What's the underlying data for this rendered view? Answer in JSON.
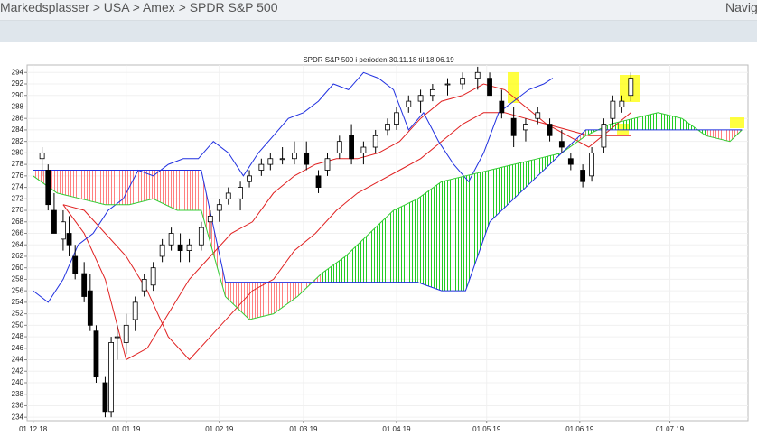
{
  "breadcrumb": "Markedsplasser > USA > Amex > SPDR S&P 500",
  "navigation": "Navig",
  "chart_data": {
    "type": "candlestick",
    "title": "SPDR S&P 500 i perioden 30.11.18 til 18.06.19",
    "xlim": [
      -2,
      238
    ],
    "ylim": [
      233.4,
      295.3
    ],
    "xticks": [
      {
        "value": 0,
        "label": "01.12.18"
      },
      {
        "value": 31,
        "label": "01.01.19"
      },
      {
        "value": 62,
        "label": "01.02.19"
      },
      {
        "value": 90,
        "label": "01.03.19"
      },
      {
        "value": 121,
        "label": "01.04.19"
      },
      {
        "value": 151,
        "label": "01.05.19"
      },
      {
        "value": 182,
        "label": "01.06.19"
      },
      {
        "value": 212,
        "label": "01.07.19"
      }
    ],
    "yticks": [
      234,
      236,
      238,
      240,
      242,
      244,
      246,
      248,
      250,
      252,
      254,
      256,
      258,
      260,
      262,
      264,
      266,
      268,
      270,
      272,
      274,
      276,
      278,
      280,
      282,
      284,
      286,
      288,
      290,
      292,
      294
    ],
    "grid": true,
    "candles": {
      "up_color": "#ffffff",
      "down_color": "#000000",
      "x": [
        3,
        5,
        7,
        10,
        12,
        14,
        17,
        19,
        21,
        24,
        26,
        28,
        31,
        34,
        37,
        40,
        43,
        46,
        49,
        52,
        56,
        59,
        62,
        65,
        69,
        72,
        76,
        79,
        83,
        87,
        91,
        95,
        98,
        102,
        106,
        110,
        114,
        118,
        121,
        125,
        129,
        133,
        138,
        143,
        148,
        152,
        156,
        160,
        164,
        168,
        172,
        176,
        179,
        183,
        186,
        190,
        193,
        196,
        199
      ],
      "open": [
        279,
        277,
        270,
        265,
        266,
        262,
        259,
        256,
        249,
        240,
        235,
        248,
        247,
        251,
        256,
        257,
        262,
        264,
        264,
        263,
        264,
        268,
        270,
        272,
        272,
        275,
        277,
        278,
        279,
        279,
        280,
        276,
        277,
        280,
        283,
        280,
        281,
        284,
        285,
        288,
        289,
        290,
        292,
        292,
        293,
        293,
        289,
        286,
        284,
        286,
        285,
        282,
        279,
        277,
        276,
        281,
        286,
        288,
        290
      ],
      "high": [
        281,
        278,
        273,
        270,
        269,
        264,
        261,
        259,
        250,
        241,
        248,
        250,
        252,
        255,
        259,
        261,
        265,
        267,
        266,
        265,
        268,
        270,
        272,
        274,
        275,
        277,
        279,
        280,
        281,
        282,
        282,
        277,
        280,
        283,
        285,
        282,
        284,
        286,
        288,
        290,
        291,
        292,
        293,
        294,
        295,
        294,
        291,
        288,
        286,
        288,
        286,
        284,
        280,
        278,
        281,
        286,
        290,
        290,
        294
      ],
      "low": [
        276,
        270,
        266,
        263,
        262,
        258,
        254,
        249,
        240,
        234,
        234,
        244,
        245,
        249,
        255,
        256,
        261,
        263,
        261,
        261,
        263,
        265,
        268,
        271,
        270,
        274,
        276,
        277,
        278,
        278,
        277,
        273,
        276,
        279,
        278,
        278,
        280,
        283,
        284,
        287,
        287,
        289,
        290,
        291,
        291,
        290,
        286,
        281,
        282,
        285,
        282,
        280,
        277,
        274,
        275,
        280,
        285,
        287,
        289
      ],
      "close": [
        280,
        271,
        266,
        268,
        264,
        259,
        255,
        250,
        241,
        235,
        247,
        248,
        250,
        254,
        258,
        260,
        264,
        266,
        263,
        264,
        267,
        269,
        271,
        273,
        274,
        276,
        278,
        279,
        279,
        280,
        278,
        274,
        279,
        282,
        279,
        281,
        283,
        285,
        287,
        289,
        290,
        291,
        292,
        293,
        294,
        290,
        287,
        283,
        285,
        287,
        283,
        281,
        278,
        275,
        280,
        285,
        289,
        289,
        293
      ]
    },
    "series": [
      {
        "color": "#e02020",
        "x": [
          10,
          17,
          24,
          31,
          38,
          45,
          52,
          59,
          66,
          73,
          80,
          87,
          94,
          101,
          108,
          115,
          122,
          129,
          136,
          143,
          150,
          157,
          164,
          171,
          178,
          185,
          192,
          199
        ],
        "values": [
          271,
          266,
          258,
          244,
          246,
          252,
          258,
          262,
          266,
          268,
          273,
          276,
          278,
          279,
          279,
          280,
          282,
          286,
          289,
          290,
          292,
          291,
          288,
          285,
          283,
          281,
          284,
          287
        ]
      },
      {
        "color": "#e02020",
        "x": [
          10,
          17,
          24,
          31,
          38,
          45,
          52,
          59,
          66,
          73,
          80,
          87,
          94,
          101,
          108,
          115,
          122,
          129,
          136,
          143,
          150,
          157,
          164,
          171,
          178,
          185,
          192,
          199
        ],
        "values": [
          271,
          270,
          266,
          262,
          256,
          248,
          244,
          248,
          252,
          256,
          258,
          263,
          266,
          270,
          273,
          275,
          277,
          279,
          282,
          285,
          287,
          287,
          286,
          285,
          284,
          283,
          283,
          283
        ]
      },
      {
        "color": "#2030e0",
        "x": [
          0,
          5,
          10,
          15,
          20,
          25,
          30,
          35,
          40,
          45,
          50,
          55,
          60,
          65,
          70,
          75,
          80,
          85,
          90,
          95,
          100,
          105,
          110,
          115,
          120,
          125,
          130,
          135,
          140,
          145,
          150,
          155,
          160,
          165,
          170,
          173
        ],
        "values": [
          256,
          254,
          258,
          264,
          266,
          270,
          272,
          277,
          276,
          278,
          279,
          279,
          282,
          280,
          276,
          280,
          283,
          286,
          287,
          289,
          292,
          291,
          294,
          293,
          291,
          284,
          287,
          282,
          278,
          275,
          280,
          287,
          289,
          291,
          292,
          293
        ]
      },
      {
        "color": "#33cc33",
        "x": [
          0,
          8,
          16,
          24,
          32,
          40,
          48,
          56,
          64,
          72,
          80,
          88,
          96,
          104,
          112,
          120,
          128,
          136,
          144,
          152,
          160,
          168,
          176,
          184,
          192,
          200,
          208,
          216,
          224,
          232,
          236
        ],
        "values": [
          276,
          273,
          272,
          271,
          271,
          272,
          270,
          270,
          255,
          251,
          252,
          255,
          259,
          262,
          266,
          270,
          272,
          275,
          276,
          277,
          278,
          279,
          280,
          283,
          285,
          286,
          287,
          286,
          283,
          282,
          284
        ]
      },
      {
        "color": "#2030e0",
        "x": [
          0,
          8,
          16,
          24,
          32,
          40,
          48,
          56,
          64,
          72,
          80,
          88,
          96,
          104,
          112,
          120,
          128,
          136,
          144,
          152,
          160,
          168,
          176,
          184,
          192,
          200,
          208,
          216,
          224,
          232,
          236
        ],
        "values": [
          277,
          277,
          277,
          277,
          277,
          277,
          277,
          277,
          257.5,
          257.5,
          257.5,
          257.5,
          257.5,
          257.5,
          257.5,
          257.5,
          257.5,
          256,
          256,
          268,
          272,
          276,
          280,
          284,
          284,
          284,
          284,
          284,
          284,
          284,
          284
        ]
      }
    ],
    "cloud": {
      "between": [
        3,
        4
      ],
      "up_color": "#22cc22",
      "down_color": "#ff8080"
    }
  }
}
